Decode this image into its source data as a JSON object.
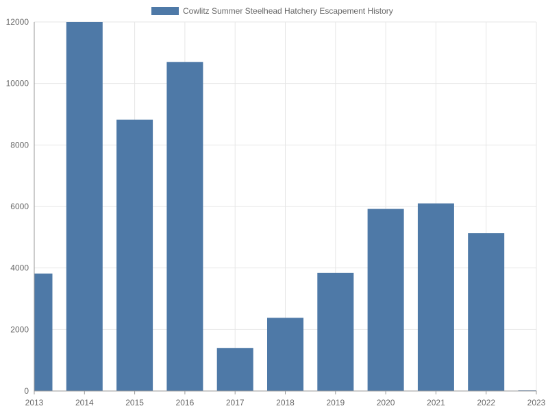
{
  "chart_data": {
    "type": "bar",
    "series": [
      {
        "name": "Cowlitz Summer Steelhead Hatchery Escapement History",
        "color": "#4e79a7",
        "values": [
          {
            "x": "2013",
            "y": 3820
          },
          {
            "x": "2014",
            "y": 12000
          },
          {
            "x": "2015",
            "y": 8820
          },
          {
            "x": "2016",
            "y": 10700
          },
          {
            "x": "2017",
            "y": 1400
          },
          {
            "x": "2018",
            "y": 2380
          },
          {
            "x": "2019",
            "y": 3840
          },
          {
            "x": "2020",
            "y": 5920
          },
          {
            "x": "2021",
            "y": 6100
          },
          {
            "x": "2022",
            "y": 5130
          },
          {
            "x": "2023",
            "y": 20
          }
        ]
      }
    ],
    "x_ticks": [
      "2013",
      "2014",
      "2015",
      "2016",
      "2017",
      "2018",
      "2019",
      "2020",
      "2021",
      "2022",
      "2023"
    ],
    "y_ticks": [
      "0",
      "2000",
      "4000",
      "6000",
      "8000",
      "10000",
      "12000"
    ],
    "ylim": [
      0,
      12000
    ],
    "grid": true,
    "legend_position": "top-center",
    "colors": {
      "bar": "#4e79a7",
      "grid": "#e6e6e6",
      "axis": "#999999",
      "text": "#666666"
    }
  }
}
